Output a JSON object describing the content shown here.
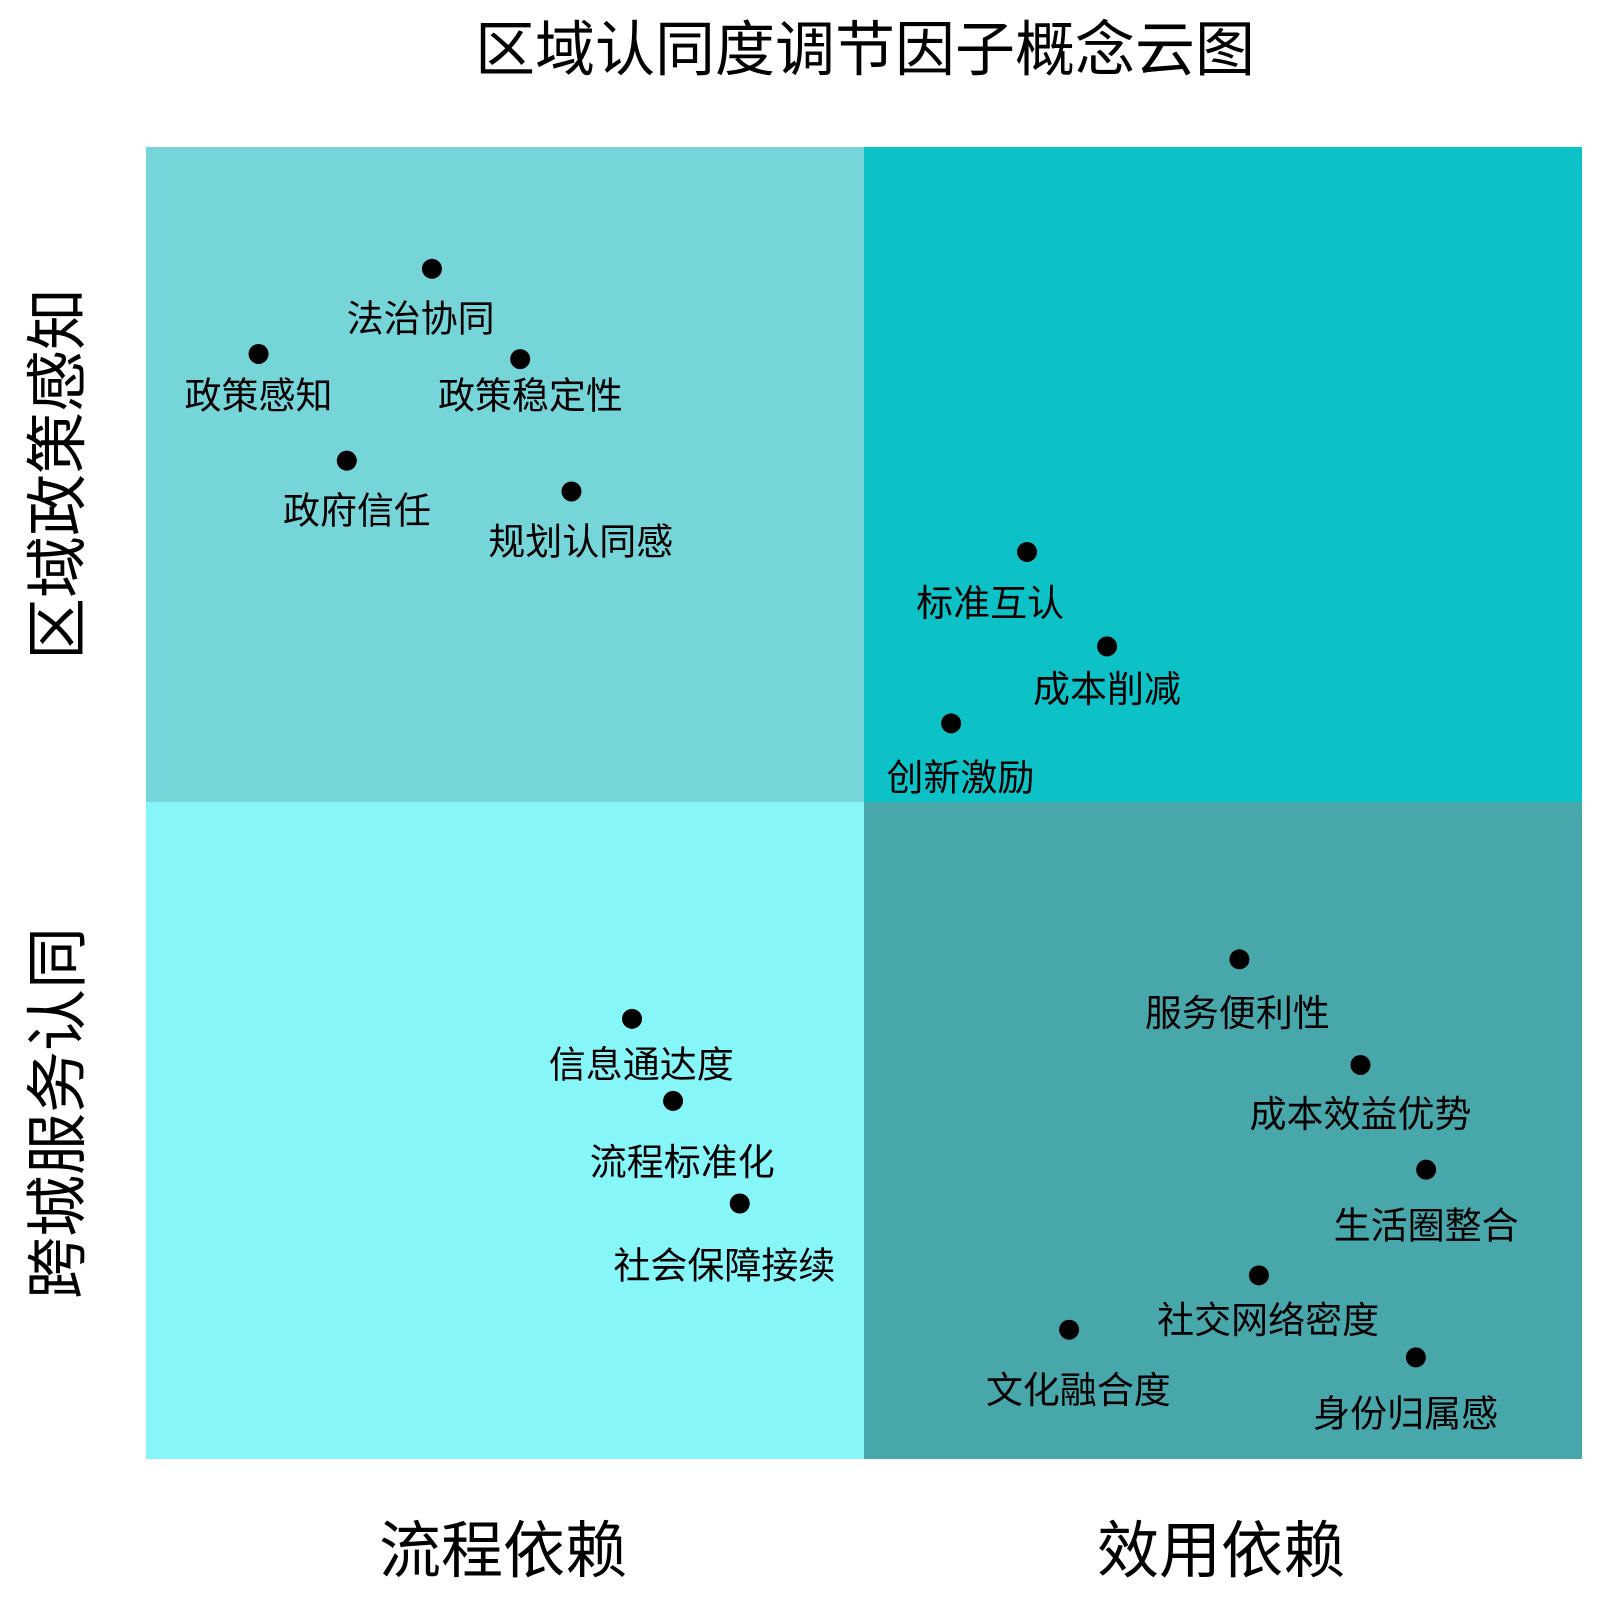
{
  "title": "区域认同度调节因子概念云图",
  "x_axis": {
    "labels": [
      "流程依赖",
      "效用依赖"
    ]
  },
  "y_axis": {
    "labels": [
      "区域政策感知",
      "跨城服务认同"
    ]
  },
  "nodes": [
    {
      "label": "法治协同"
    },
    {
      "label": "政策感知"
    },
    {
      "label": "政策稳定性"
    },
    {
      "label": "政府信任"
    },
    {
      "label": "规划认同感"
    },
    {
      "label": "标准互认"
    },
    {
      "label": "成本削减"
    },
    {
      "label": "创新激励"
    },
    {
      "label": "信息通达度"
    },
    {
      "label": "流程标准化"
    },
    {
      "label": "社会保障接续"
    },
    {
      "label": "服务便利性"
    },
    {
      "label": "成本效益优势"
    },
    {
      "label": "生活圈整合"
    },
    {
      "label": "社交网络密度"
    },
    {
      "label": "文化融合度"
    },
    {
      "label": "身份归属感"
    }
  ]
}
